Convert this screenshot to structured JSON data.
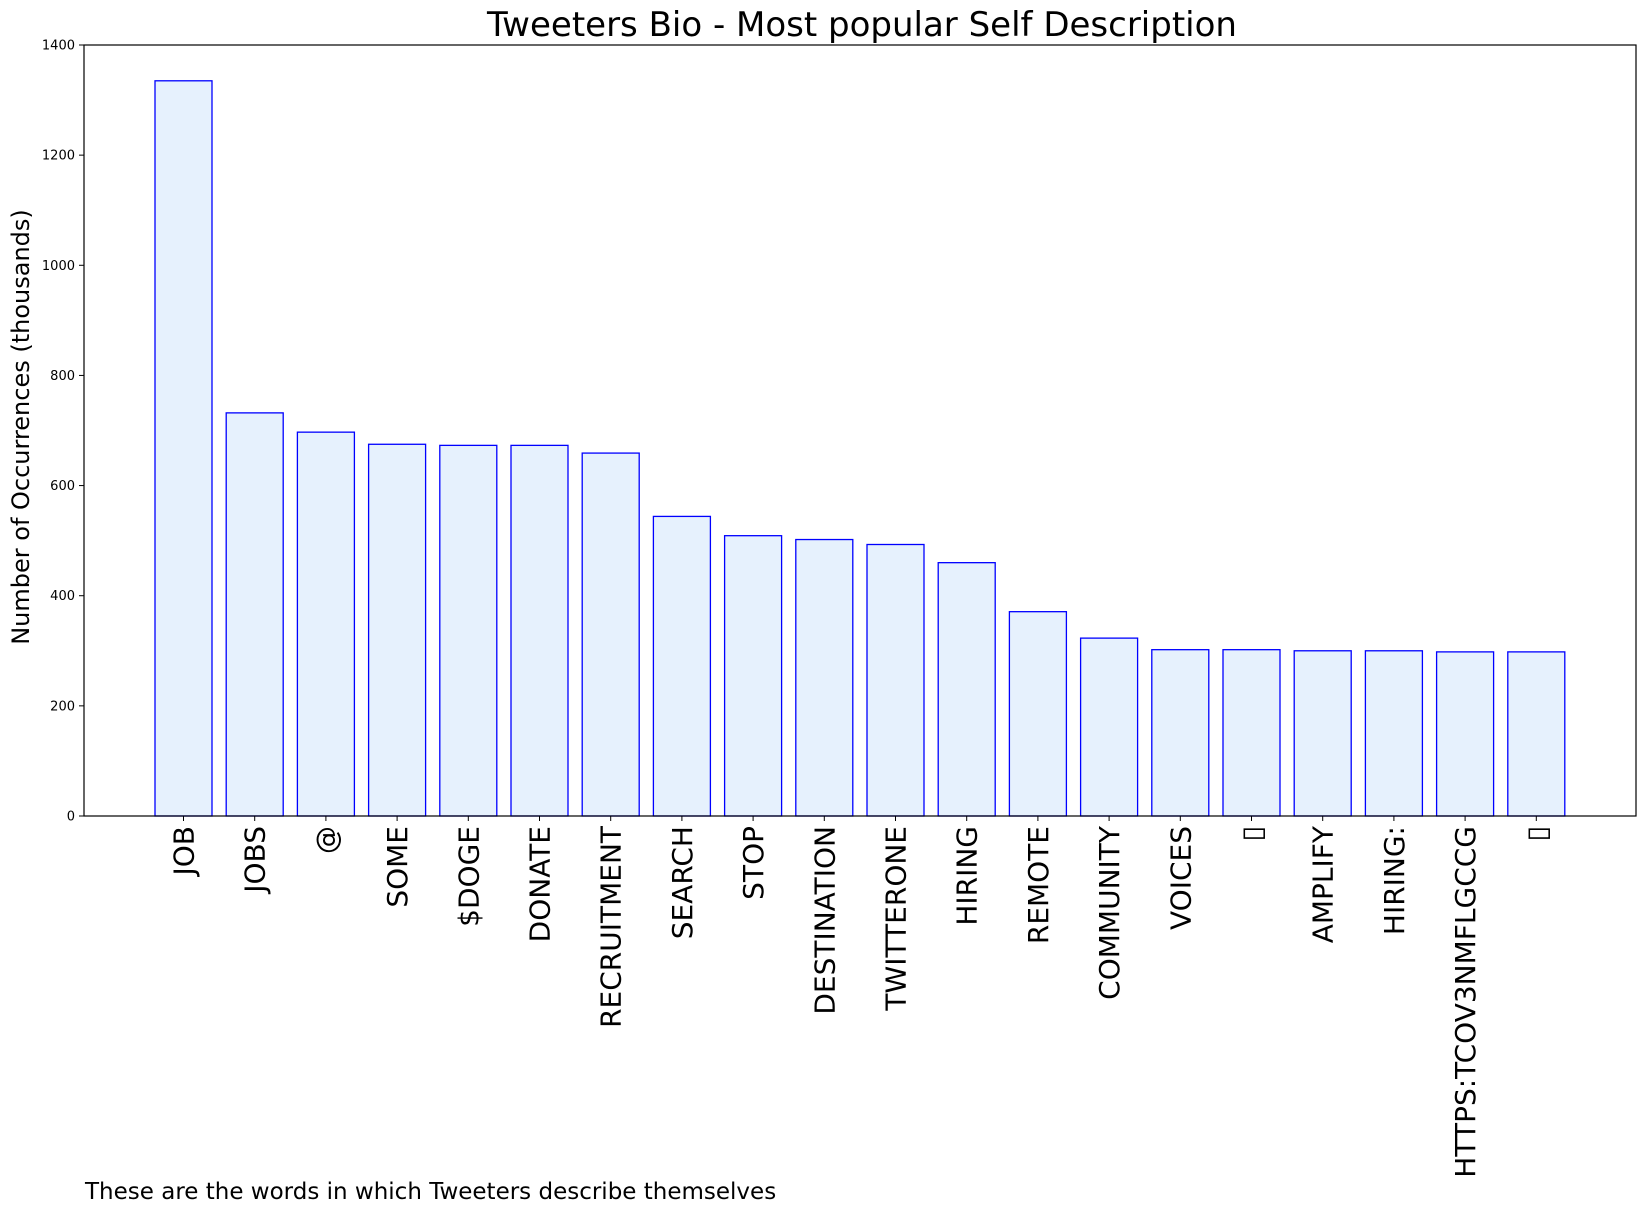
{
  "chart_data": {
    "type": "bar",
    "title": "Tweeters Bio - Most popular Self Description",
    "xlabel": "",
    "ylabel": "Number of Occurrences (thousands)",
    "caption": "These are the words in which Tweeters describe themselves",
    "ylim": [
      0,
      1400
    ],
    "yticks": [
      0,
      200,
      400,
      600,
      800,
      1000,
      1200,
      1400
    ],
    "grid": false,
    "legend": "none",
    "categories": [
      "JOB",
      "JOBS",
      "@",
      "SOME",
      "$DOGE",
      "DONATE",
      "RECRUITMENT",
      "SEARCH",
      "STOP",
      "DESTINATION",
      "TWITTERONE",
      "HIRING",
      "REMOTE",
      "COMMUNITY",
      "VOICES",
      "▯",
      "AMPLIFY",
      "HIRING:",
      "HTTPS:TCOV3NMFLGCCG",
      "▯"
    ],
    "values": [
      1335,
      732,
      697,
      675,
      673,
      673,
      659,
      544,
      509,
      502,
      493,
      460,
      371,
      323,
      302,
      302,
      300,
      300,
      298,
      298
    ],
    "colors": {
      "bar_fill": "#e6f1fd",
      "bar_edge": "#0000ff",
      "axis": "#000000"
    }
  }
}
